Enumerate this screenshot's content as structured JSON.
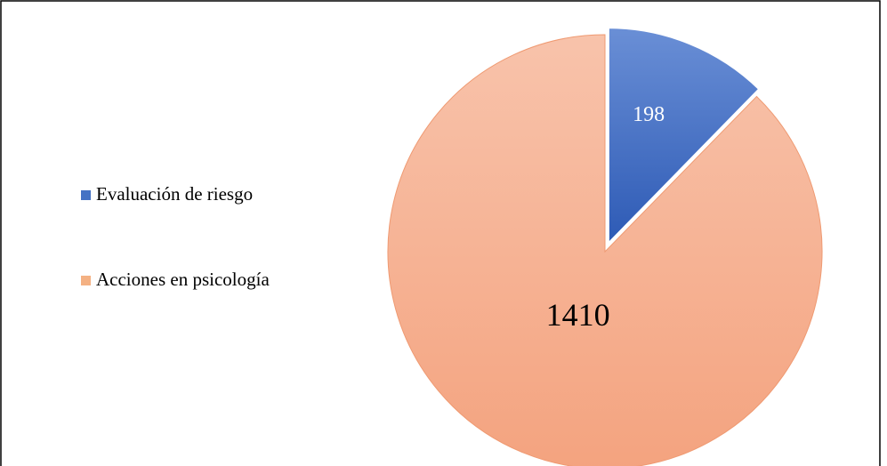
{
  "chart_data": {
    "type": "pie",
    "categories": [
      "Evaluación de riesgo",
      "Acciones en psicología"
    ],
    "values": [
      198,
      1410
    ],
    "colors": [
      "#4472c4",
      "#f4b183"
    ],
    "legend": "left"
  }
}
